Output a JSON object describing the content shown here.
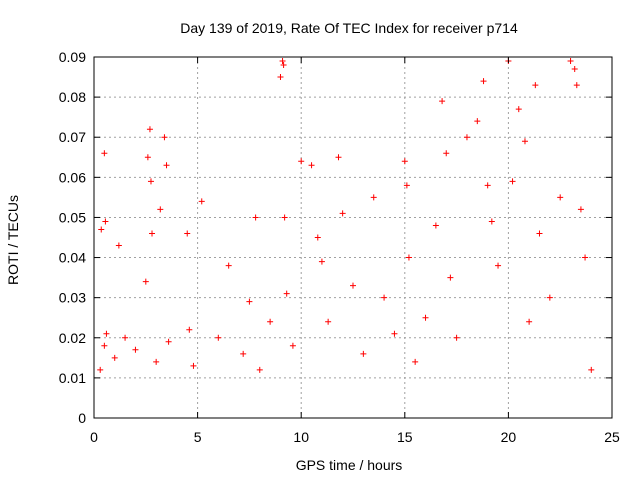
{
  "chart_data": {
    "type": "scatter",
    "title": "Day 139 of 2019, Rate Of TEC Index for receiver p714",
    "xlabel": "GPS time / hours",
    "ylabel": "ROTI / TECUs",
    "xlim": [
      0,
      25
    ],
    "ylim": [
      0,
      0.09
    ],
    "x_ticks": [
      0,
      5,
      10,
      15,
      20,
      25
    ],
    "x_tick_labels": [
      "0",
      "5",
      "10",
      "15",
      "20",
      "25"
    ],
    "y_ticks": [
      0,
      0.01,
      0.02,
      0.03,
      0.04,
      0.05,
      0.06,
      0.07,
      0.08,
      0.09
    ],
    "y_tick_labels": [
      "0",
      "0.01",
      "0.02",
      "0.03",
      "0.04",
      "0.05",
      "0.06",
      "0.07",
      "0.08",
      "0.09"
    ],
    "grid": true,
    "marker": "+",
    "series": [
      {
        "color": "#ff0000",
        "x": [
          0.3,
          0.35,
          0.5,
          0.5,
          0.55,
          0.6,
          1.0,
          1.2,
          1.5,
          2.0,
          2.5,
          2.6,
          2.7,
          2.75,
          2.8,
          3.0,
          3.2,
          3.4,
          3.5,
          3.6,
          4.5,
          4.6,
          4.8,
          5.2,
          6.0,
          6.5,
          7.2,
          7.5,
          7.8,
          8.0,
          8.5,
          9.0,
          9.1,
          9.15,
          9.2,
          9.3,
          9.6,
          10.0,
          10.5,
          10.8,
          11.0,
          11.3,
          11.8,
          12.0,
          12.5,
          13.0,
          13.5,
          14.0,
          14.5,
          15.0,
          15.1,
          15.2,
          15.5,
          16.0,
          16.5,
          16.8,
          17.0,
          17.2,
          17.5,
          18.0,
          18.5,
          18.8,
          19.0,
          19.2,
          19.5,
          20.0,
          20.2,
          20.5,
          20.8,
          21.0,
          21.3,
          21.5,
          22.0,
          22.5,
          23.0,
          23.2,
          23.3,
          23.5,
          23.7,
          24.0
        ],
        "y": [
          0.012,
          0.047,
          0.066,
          0.018,
          0.049,
          0.021,
          0.015,
          0.043,
          0.02,
          0.017,
          0.034,
          0.065,
          0.072,
          0.059,
          0.046,
          0.014,
          0.052,
          0.07,
          0.063,
          0.019,
          0.046,
          0.022,
          0.013,
          0.054,
          0.02,
          0.038,
          0.016,
          0.029,
          0.05,
          0.012,
          0.024,
          0.085,
          0.089,
          0.088,
          0.05,
          0.031,
          0.018,
          0.064,
          0.063,
          0.045,
          0.039,
          0.024,
          0.065,
          0.051,
          0.033,
          0.016,
          0.055,
          0.03,
          0.021,
          0.064,
          0.058,
          0.04,
          0.014,
          0.025,
          0.048,
          0.079,
          0.066,
          0.035,
          0.02,
          0.07,
          0.074,
          0.084,
          0.058,
          0.049,
          0.038,
          0.089,
          0.059,
          0.077,
          0.069,
          0.024,
          0.083,
          0.046,
          0.03,
          0.055,
          0.089,
          0.087,
          0.083,
          0.052,
          0.04,
          0.012
        ]
      }
    ]
  }
}
